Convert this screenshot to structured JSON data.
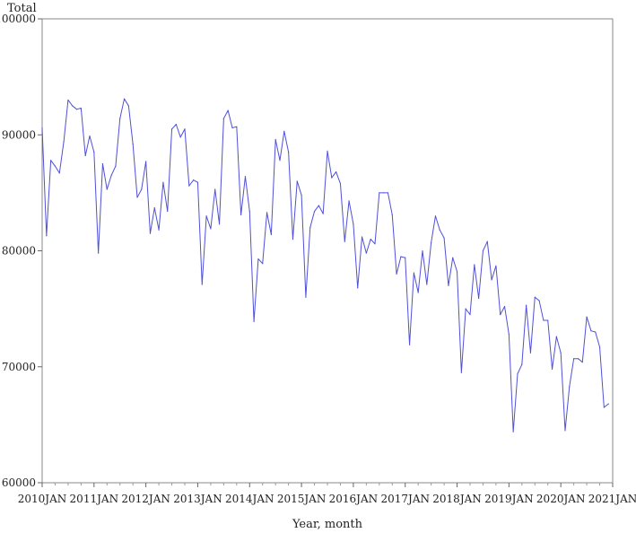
{
  "chart_data": {
    "type": "line",
    "title": "",
    "ylabel": "Total",
    "xlabel": "Year, month",
    "ylim": [
      60000,
      100000
    ],
    "yticks": [
      60000,
      70000,
      80000,
      90000,
      100000
    ],
    "ytick_labels": [
      "60000",
      "70000",
      "80000",
      "90000",
      "100000"
    ],
    "xlim": [
      "2010-01",
      "2021-01"
    ],
    "xtick_labels": [
      "2010JAN",
      "2011JAN",
      "2012JAN",
      "2013JAN",
      "2014JAN",
      "2015JAN",
      "2016JAN",
      "2017JAN",
      "2018JAN",
      "2019JAN",
      "2020JAN",
      "2021JAN"
    ],
    "grid": false,
    "line_color": "#5050d8",
    "series": [
      {
        "start": "2010-01",
        "frequency": "monthly",
        "values": [
          90600,
          81300,
          87800,
          87300,
          86700,
          89400,
          93000,
          92500,
          92200,
          92300,
          88200,
          89900,
          88500,
          79800,
          87500,
          85300,
          86500,
          87300,
          91400,
          93100,
          92500,
          89200,
          84600,
          85300,
          87700,
          81500,
          83700,
          81800,
          85900,
          83400,
          90500,
          90900,
          89800,
          90500,
          85600,
          86100,
          85900,
          77100,
          83000,
          81900,
          85300,
          82300,
          91400,
          92100,
          90600,
          90700,
          83100,
          86400,
          83400,
          73900,
          79300,
          78900,
          83300,
          81400,
          89600,
          87800,
          90300,
          88500,
          81000,
          86000,
          84800,
          76000,
          82000,
          83400,
          83900,
          83200,
          88600,
          86300,
          86800,
          85800,
          80800,
          84300,
          82300,
          76800,
          81200,
          79800,
          81000,
          80600,
          85000,
          85000,
          85000,
          83100,
          78000,
          79500,
          79400,
          71900,
          78100,
          76400,
          80000,
          77100,
          80700,
          83000,
          81800,
          81100,
          77000,
          79400,
          78200,
          69500,
          75000,
          74500,
          78800,
          75900,
          80000,
          80800,
          77500,
          78700,
          74500,
          75200,
          72800,
          64400,
          69400,
          70200,
          75300,
          71200,
          76000,
          75700,
          74000,
          74000,
          69800,
          72600,
          71200,
          64500,
          68300,
          70700,
          70700,
          70400,
          74300,
          73100,
          73000,
          71700,
          66500,
          66800
        ]
      }
    ]
  }
}
